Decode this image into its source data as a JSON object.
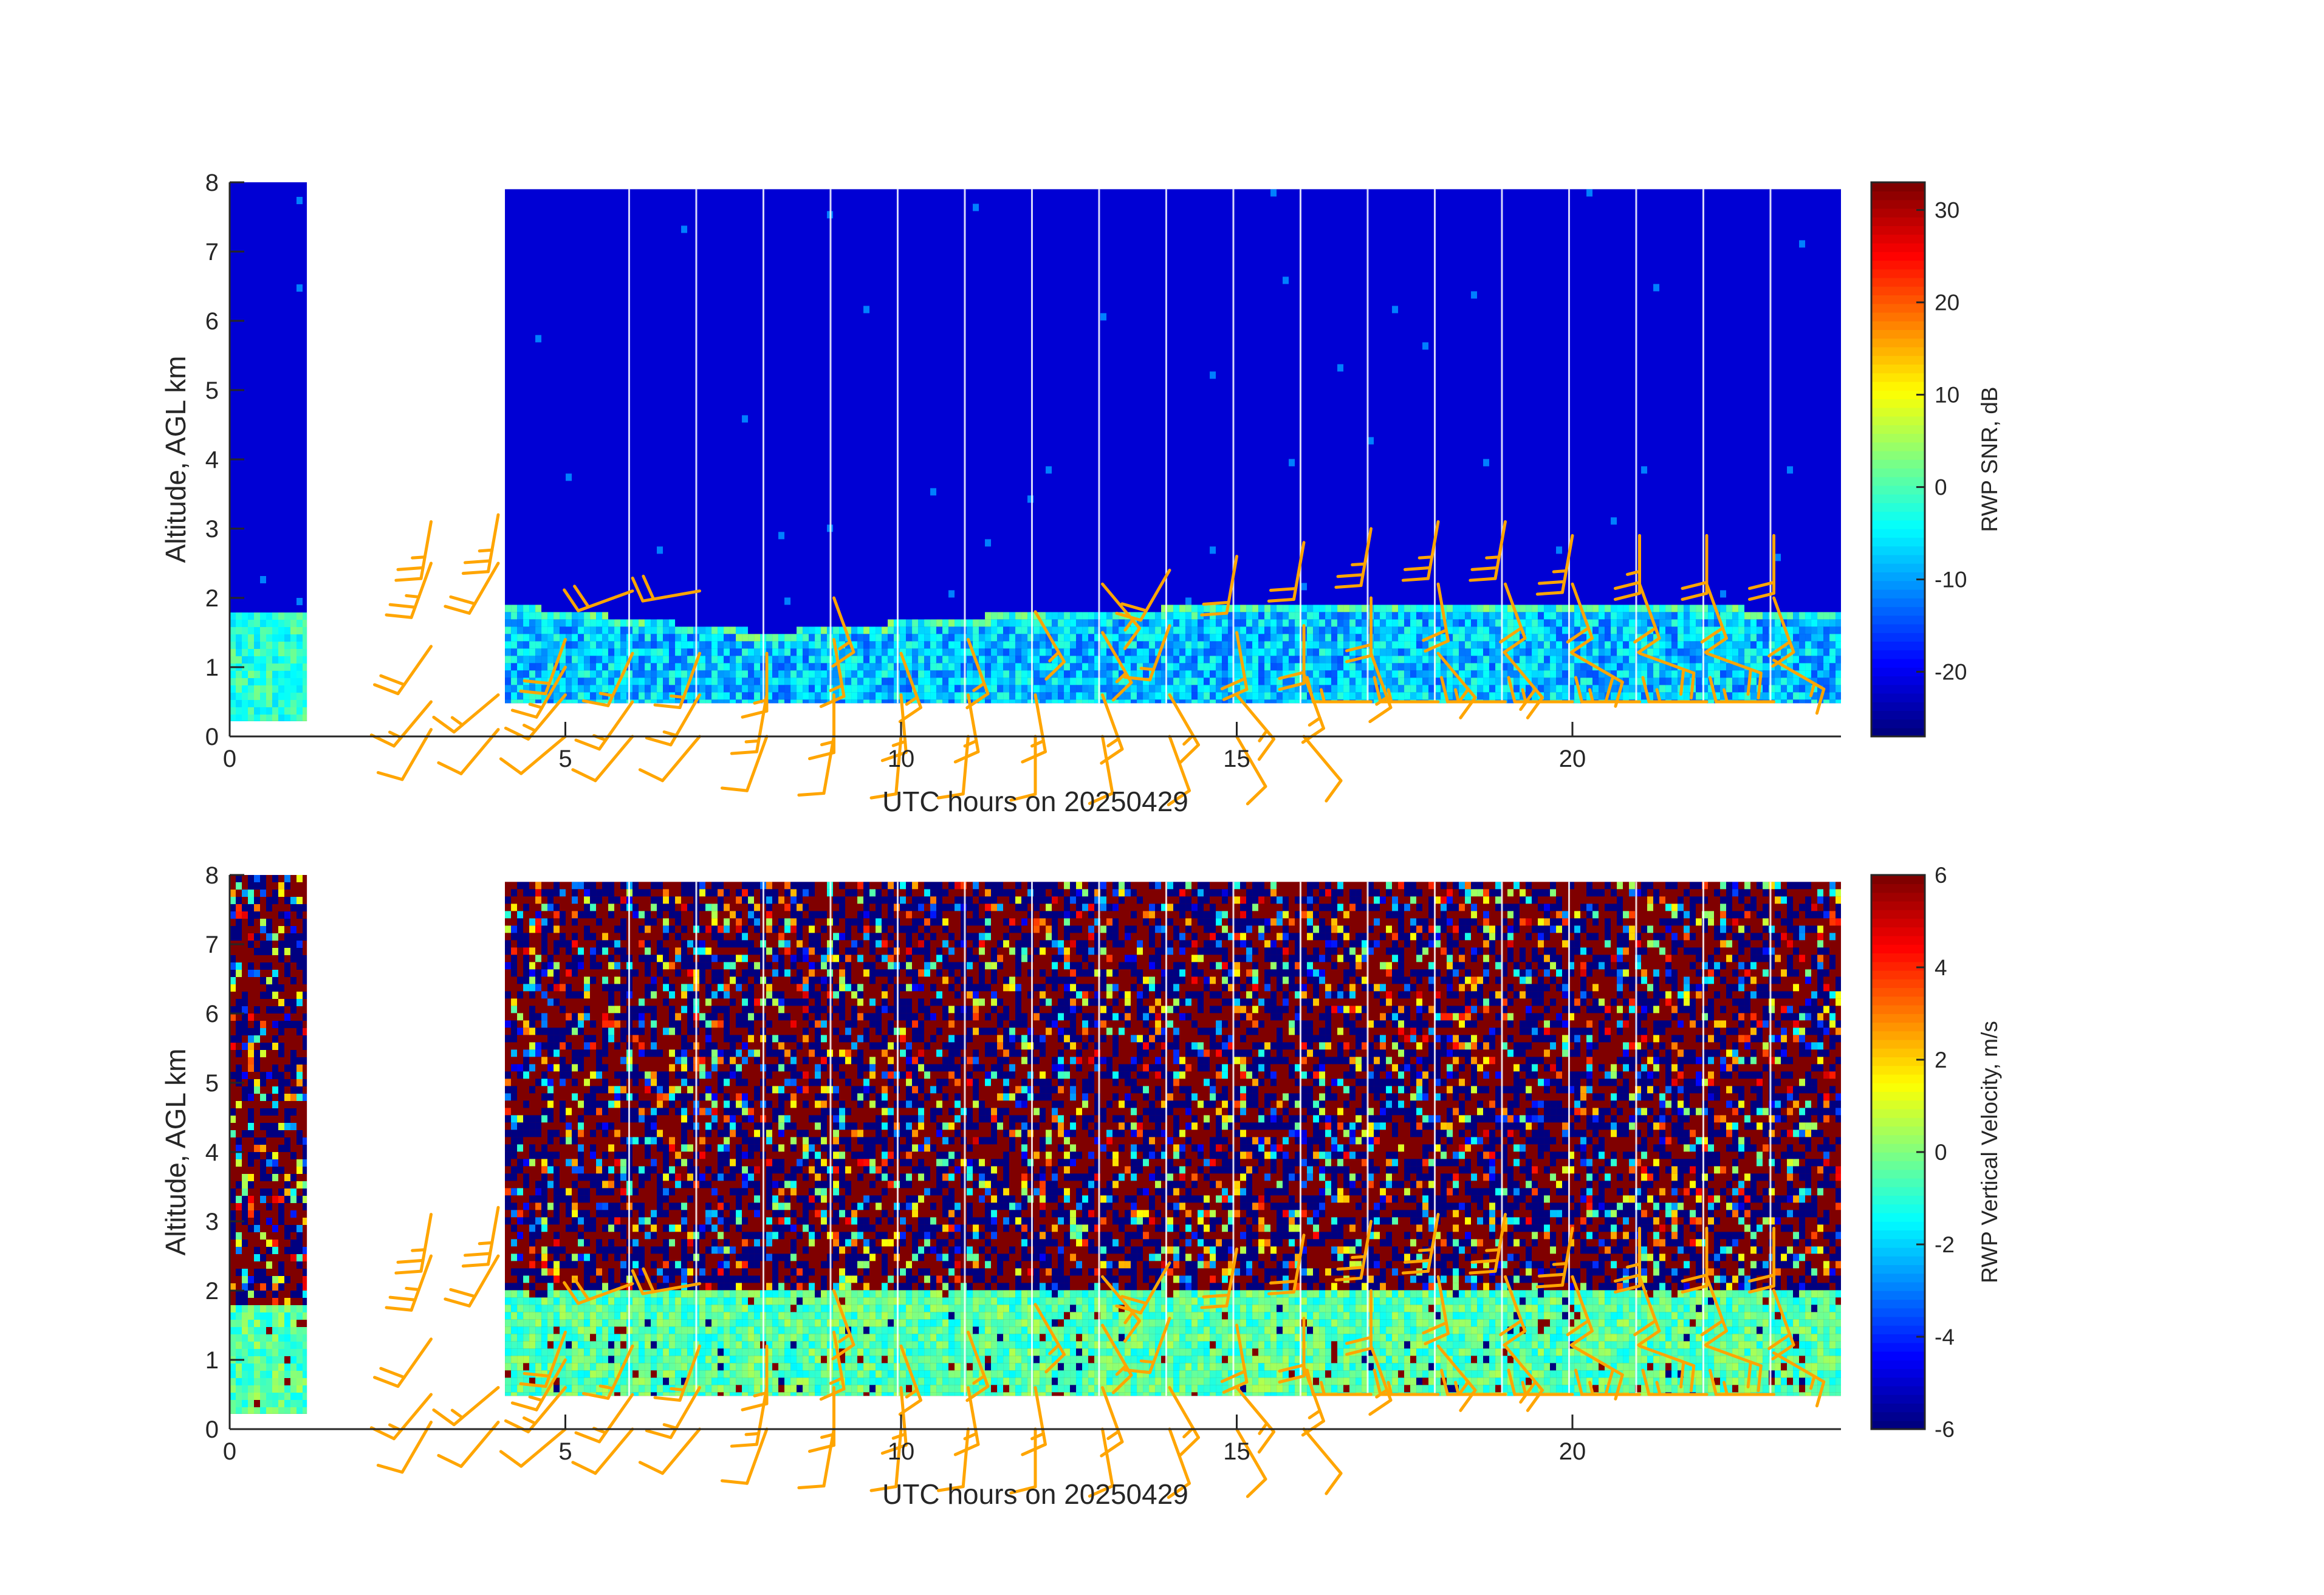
{
  "chart_data": [
    {
      "type": "heatmap",
      "panel": "top",
      "xlabel": "UTC hours on 20250429",
      "ylabel": "Altitude, AGL km",
      "colorbar_label": "RWP SNR, dB",
      "xlim": [
        0,
        24
      ],
      "ylim": [
        0,
        8
      ],
      "xticks": [
        0,
        5,
        10,
        15,
        20
      ],
      "yticks": [
        0,
        1,
        2,
        3,
        4,
        5,
        6,
        7,
        8
      ],
      "clim": [
        -27,
        33
      ],
      "colorbar_ticks": [
        -20,
        -10,
        0,
        10,
        20,
        30
      ],
      "colormap": "jet",
      "data_segments": [
        {
          "x_start": 0.0,
          "x_end": 1.15,
          "y_bottom": 0.22,
          "y_top": 8.0
        },
        {
          "x_start": 4.1,
          "x_end": 24.0,
          "y_bottom": 0.48,
          "y_top": 7.9
        }
      ],
      "features": {
        "background_snr_db": -22,
        "boundary_layer_top_km": [
          [
            4.1,
            1.9
          ],
          [
            8,
            1.5
          ],
          [
            12,
            1.8
          ],
          [
            16,
            1.9
          ],
          [
            20,
            1.95
          ],
          [
            23.8,
            1.8
          ]
        ],
        "boundary_layer_snr_db": -8
      }
    },
    {
      "type": "heatmap",
      "panel": "bottom",
      "xlabel": "UTC hours on 20250429",
      "ylabel": "Altitude, AGL km",
      "colorbar_label": "RWP Vertical Velocity, m/s",
      "xlim": [
        0,
        24
      ],
      "ylim": [
        0,
        8
      ],
      "xticks": [
        0,
        5,
        10,
        15,
        20
      ],
      "yticks": [
        0,
        1,
        2,
        3,
        4,
        5,
        6,
        7,
        8
      ],
      "clim": [
        -6,
        6
      ],
      "colorbar_ticks": [
        -6,
        -4,
        -2,
        0,
        2,
        4,
        6
      ],
      "colormap": "jet",
      "data_segments": [
        {
          "x_start": 0.0,
          "x_end": 1.15,
          "y_bottom": 0.22,
          "y_top": 8.0
        },
        {
          "x_start": 4.1,
          "x_end": 24.0,
          "y_bottom": 0.48,
          "y_top": 7.9
        }
      ],
      "features": {
        "upper_region": "noisy +/-6 m/s",
        "boundary_layer_top_km": 2.05,
        "boundary_layer_velocity_ms": -0.5
      }
    }
  ],
  "wind_barbs": {
    "color": "#FFA500",
    "shared_by_panels": true,
    "columns": [
      {
        "x": 3.0,
        "levels": [
          [
            0.1,
            210,
            10
          ],
          [
            0.5,
            220,
            15
          ],
          [
            1.3,
            215,
            20
          ],
          [
            2.5,
            200,
            25
          ],
          [
            3.1,
            190,
            25
          ]
        ]
      },
      {
        "x": 4.0,
        "levels": [
          [
            0.1,
            220,
            10
          ],
          [
            0.6,
            230,
            15
          ],
          [
            2.5,
            210,
            20
          ],
          [
            3.2,
            190,
            25
          ]
        ]
      },
      {
        "x": 5.0,
        "levels": [
          [
            0.0,
            230,
            10
          ],
          [
            0.6,
            220,
            15
          ],
          [
            1.0,
            210,
            15
          ],
          [
            1.4,
            200,
            20
          ]
        ]
      },
      {
        "x": 6.0,
        "levels": [
          [
            0.0,
            220,
            10
          ],
          [
            0.5,
            215,
            15
          ],
          [
            1.2,
            205,
            15
          ],
          [
            2.1,
            250,
            20
          ]
        ]
      },
      {
        "x": 7.0,
        "levels": [
          [
            0.0,
            220,
            10
          ],
          [
            0.6,
            210,
            15
          ],
          [
            1.2,
            200,
            15
          ],
          [
            2.1,
            260,
            20
          ]
        ]
      },
      {
        "x": 8.0,
        "levels": [
          [
            0.0,
            200,
            10
          ],
          [
            0.6,
            190,
            15
          ],
          [
            1.2,
            180,
            15
          ]
        ]
      },
      {
        "x": 9.0,
        "levels": [
          [
            0.0,
            190,
            10
          ],
          [
            0.6,
            180,
            15
          ],
          [
            1.4,
            170,
            15
          ],
          [
            2.0,
            160,
            15
          ]
        ]
      },
      {
        "x": 10.0,
        "levels": [
          [
            0.0,
            185,
            10
          ],
          [
            0.6,
            175,
            15
          ],
          [
            1.2,
            160,
            15
          ]
        ]
      },
      {
        "x": 11.0,
        "levels": [
          [
            0.0,
            185,
            10
          ],
          [
            0.6,
            170,
            15
          ],
          [
            1.4,
            160,
            15
          ]
        ]
      },
      {
        "x": 12.0,
        "levels": [
          [
            0.0,
            180,
            10
          ],
          [
            0.6,
            170,
            15
          ],
          [
            1.8,
            150,
            15
          ]
        ]
      },
      {
        "x": 13.0,
        "levels": [
          [
            0.0,
            170,
            10
          ],
          [
            0.6,
            160,
            15
          ],
          [
            1.5,
            150,
            15
          ],
          [
            2.2,
            140,
            15
          ]
        ]
      },
      {
        "x": 14.0,
        "levels": [
          [
            0.0,
            160,
            10
          ],
          [
            0.6,
            150,
            15
          ],
          [
            1.6,
            200,
            15
          ],
          [
            2.4,
            210,
            20
          ]
        ]
      },
      {
        "x": 15.0,
        "levels": [
          [
            0.0,
            150,
            10
          ],
          [
            0.6,
            140,
            15
          ],
          [
            1.5,
            170,
            20
          ],
          [
            2.6,
            190,
            20
          ]
        ]
      },
      {
        "x": 16.0,
        "levels": [
          [
            0.0,
            140,
            10
          ],
          [
            0.9,
            160,
            15
          ],
          [
            1.6,
            180,
            20
          ],
          [
            2.8,
            190,
            20
          ]
        ]
      },
      {
        "x": 17.0,
        "levels": [
          [
            0.5,
            270,
            15
          ],
          [
            1.2,
            160,
            15
          ],
          [
            2.0,
            180,
            20
          ],
          [
            3.0,
            190,
            25
          ]
        ]
      },
      {
        "x": 18.0,
        "levels": [
          [
            0.5,
            270,
            15
          ],
          [
            1.2,
            140,
            15
          ],
          [
            2.2,
            170,
            20
          ],
          [
            3.1,
            190,
            25
          ]
        ]
      },
      {
        "x": 19.0,
        "levels": [
          [
            0.5,
            270,
            15
          ],
          [
            1.2,
            140,
            20
          ],
          [
            2.2,
            160,
            20
          ],
          [
            3.1,
            190,
            25
          ]
        ]
      },
      {
        "x": 20.0,
        "levels": [
          [
            0.5,
            270,
            15
          ],
          [
            1.2,
            120,
            20
          ],
          [
            2.2,
            160,
            20
          ],
          [
            2.9,
            190,
            25
          ]
        ]
      },
      {
        "x": 21.0,
        "levels": [
          [
            0.5,
            270,
            15
          ],
          [
            1.2,
            110,
            20
          ],
          [
            2.2,
            160,
            20
          ],
          [
            2.9,
            180,
            25
          ]
        ]
      },
      {
        "x": 22.0,
        "levels": [
          [
            0.5,
            270,
            15
          ],
          [
            1.2,
            110,
            20
          ],
          [
            2.2,
            160,
            20
          ],
          [
            2.9,
            180,
            20
          ]
        ]
      },
      {
        "x": 23.0,
        "levels": [
          [
            0.5,
            270,
            15
          ],
          [
            1.1,
            120,
            15
          ],
          [
            2.0,
            160,
            20
          ],
          [
            2.9,
            180,
            20
          ]
        ]
      }
    ]
  }
}
